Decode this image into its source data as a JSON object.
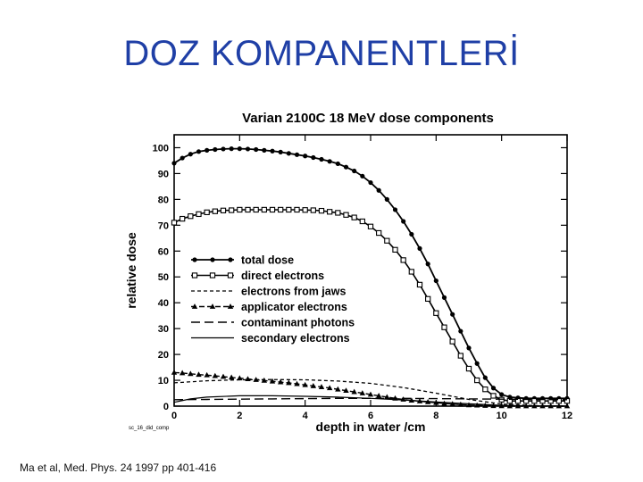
{
  "slide": {
    "title": "DOZ KOMPANENTLERİ",
    "citation": "Ma et al, Med. Phys. 24 1997 pp 401-416"
  },
  "chart_data": {
    "type": "line",
    "title": "Varian 2100C 18 MeV  dose components",
    "xlabel": "depth in water /cm",
    "ylabel": "relative dose",
    "xlim": [
      0,
      12
    ],
    "ylim": [
      0,
      105
    ],
    "x_ticks": [
      0,
      2,
      4,
      6,
      8,
      10,
      12
    ],
    "y_ticks": [
      0,
      10,
      20,
      30,
      40,
      50,
      60,
      70,
      80,
      90,
      100
    ],
    "grid": false,
    "legend_position": "center-left",
    "figure_code": "sc_16_did_comp",
    "series": [
      {
        "name": "total dose",
        "style": "solid-filled-circle",
        "x": [
          0,
          0.25,
          0.5,
          0.75,
          1,
          1.25,
          1.5,
          1.75,
          2,
          2.25,
          2.5,
          2.75,
          3,
          3.25,
          3.5,
          3.75,
          4,
          4.25,
          4.5,
          4.75,
          5,
          5.25,
          5.5,
          5.75,
          6,
          6.25,
          6.5,
          6.75,
          7,
          7.25,
          7.5,
          7.75,
          8,
          8.25,
          8.5,
          8.75,
          9,
          9.25,
          9.5,
          9.75,
          10,
          10.25,
          10.5,
          10.75,
          11,
          11.25,
          11.5,
          11.75,
          12
        ],
        "y": [
          94,
          96,
          97.5,
          98.5,
          99,
          99.3,
          99.5,
          99.6,
          99.6,
          99.5,
          99.3,
          99,
          98.7,
          98.3,
          97.8,
          97.3,
          96.8,
          96.2,
          95.5,
          94.7,
          93.8,
          92.5,
          91,
          89,
          86.5,
          83.5,
          80,
          76,
          71.5,
          66.5,
          61,
          55,
          48.5,
          42,
          35.5,
          29,
          22.5,
          16.5,
          11,
          7,
          4.5,
          3.5,
          3.2,
          3,
          3,
          3,
          3,
          3,
          3
        ]
      },
      {
        "name": "direct electrons",
        "style": "solid-open-square",
        "x": [
          0,
          0.25,
          0.5,
          0.75,
          1,
          1.25,
          1.5,
          1.75,
          2,
          2.25,
          2.5,
          2.75,
          3,
          3.25,
          3.5,
          3.75,
          4,
          4.25,
          4.5,
          4.75,
          5,
          5.25,
          5.5,
          5.75,
          6,
          6.25,
          6.5,
          6.75,
          7,
          7.25,
          7.5,
          7.75,
          8,
          8.25,
          8.5,
          8.75,
          9,
          9.25,
          9.5,
          9.75,
          10,
          10.25,
          10.5,
          10.75,
          11,
          11.25,
          11.5,
          11.75,
          12
        ],
        "y": [
          71,
          72.5,
          73.5,
          74.3,
          75,
          75.4,
          75.7,
          75.8,
          76,
          76,
          76,
          76,
          76,
          76,
          76,
          76,
          75.9,
          75.8,
          75.6,
          75.2,
          74.8,
          74,
          73,
          71.5,
          69.5,
          67,
          64,
          60.5,
          56.5,
          52,
          47,
          41.5,
          36,
          30.5,
          25,
          19.5,
          14.5,
          10,
          6.5,
          4,
          2.5,
          2,
          2,
          2,
          2,
          2,
          2,
          2,
          2
        ]
      },
      {
        "name": "electrons from jaws",
        "style": "dashed-short",
        "x": [
          0,
          1,
          2,
          3,
          4,
          5,
          6,
          7,
          8,
          9,
          10,
          11,
          12
        ],
        "y": [
          9,
          9.8,
          10.2,
          10.3,
          10.2,
          9.7,
          8.8,
          7.2,
          5,
          2.6,
          0.8,
          0.2,
          0
        ]
      },
      {
        "name": "applicator electrons",
        "style": "dashed-filled-triangle",
        "x": [
          0,
          0.25,
          0.5,
          0.75,
          1,
          1.25,
          1.5,
          1.75,
          2,
          2.25,
          2.5,
          2.75,
          3,
          3.25,
          3.5,
          3.75,
          4,
          4.25,
          4.5,
          4.75,
          5,
          5.25,
          5.5,
          5.75,
          6,
          6.25,
          6.5,
          6.75,
          7,
          7.25,
          7.5,
          7.75,
          8,
          8.25,
          8.5,
          8.75,
          9,
          9.25,
          9.5,
          9.75,
          10,
          10.25,
          10.5,
          10.75,
          11,
          11.25,
          11.5,
          11.75,
          12
        ],
        "y": [
          13,
          12.8,
          12.5,
          12.2,
          12,
          11.7,
          11.4,
          11.1,
          10.8,
          10.5,
          10.2,
          9.9,
          9.6,
          9.3,
          9,
          8.6,
          8.2,
          7.8,
          7.4,
          7,
          6.5,
          6,
          5.5,
          5,
          4.5,
          4,
          3.5,
          3,
          2.6,
          2.2,
          1.9,
          1.6,
          1.3,
          1,
          0.8,
          0.6,
          0.4,
          0.3,
          0.2,
          0.1,
          0.05,
          0,
          0,
          0,
          0,
          0,
          0,
          0,
          0
        ]
      },
      {
        "name": "contaminant photons",
        "style": "dashed-long",
        "x": [
          0,
          1,
          2,
          3,
          4,
          5,
          6,
          7,
          8,
          9,
          10,
          11,
          12
        ],
        "y": [
          2.5,
          2.6,
          2.7,
          2.8,
          2.9,
          3.0,
          3.0,
          3.0,
          2.9,
          2.8,
          2.7,
          2.6,
          2.5
        ]
      },
      {
        "name": "secondary electrons",
        "style": "solid-thin",
        "x": [
          0,
          0.5,
          1,
          2,
          3,
          4,
          5,
          6,
          7,
          8,
          9,
          10,
          11,
          12
        ],
        "y": [
          1.5,
          2.8,
          3.5,
          4,
          4,
          3.8,
          3.5,
          3,
          2.4,
          1.6,
          0.9,
          0.3,
          0.1,
          0
        ]
      }
    ]
  }
}
